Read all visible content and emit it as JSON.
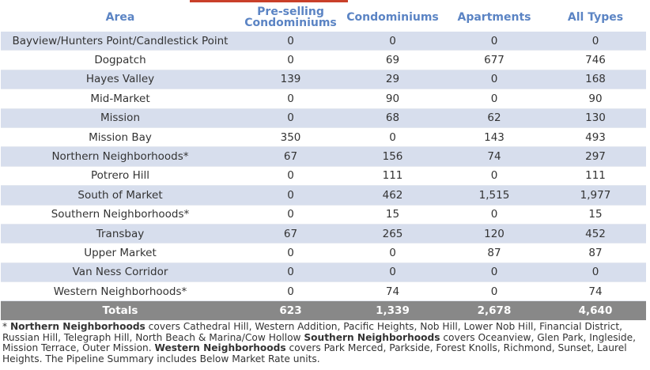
{
  "table": {
    "headers": {
      "area": "Area",
      "preselling": "Pre-selling Condominiums",
      "condominiums": "Condominiums",
      "apartments": "Apartments",
      "all_types": "All Types"
    },
    "rows": [
      {
        "area": "Bayview/Hunters Point/Candlestick Point",
        "preselling": "0",
        "condominiums": "0",
        "apartments": "0",
        "all_types": "0"
      },
      {
        "area": "Dogpatch",
        "preselling": "0",
        "condominiums": "69",
        "apartments": "677",
        "all_types": "746"
      },
      {
        "area": "Hayes Valley",
        "preselling": "139",
        "condominiums": "29",
        "apartments": "0",
        "all_types": "168"
      },
      {
        "area": "Mid-Market",
        "preselling": "0",
        "condominiums": "90",
        "apartments": "0",
        "all_types": "90"
      },
      {
        "area": "Mission",
        "preselling": "0",
        "condominiums": "68",
        "apartments": "62",
        "all_types": "130"
      },
      {
        "area": "Mission Bay",
        "preselling": "350",
        "condominiums": "0",
        "apartments": "143",
        "all_types": "493"
      },
      {
        "area": "Northern Neighborhoods*",
        "preselling": "67",
        "condominiums": "156",
        "apartments": "74",
        "all_types": "297"
      },
      {
        "area": "Potrero Hill",
        "preselling": "0",
        "condominiums": "111",
        "apartments": "0",
        "all_types": "111"
      },
      {
        "area": "South of Market",
        "preselling": "0",
        "condominiums": "462",
        "apartments": "1,515",
        "all_types": "1,977"
      },
      {
        "area": "Southern Neighborhoods*",
        "preselling": "0",
        "condominiums": "15",
        "apartments": "0",
        "all_types": "15"
      },
      {
        "area": "Transbay",
        "preselling": "67",
        "condominiums": "265",
        "apartments": "120",
        "all_types": "452"
      },
      {
        "area": "Upper Market",
        "preselling": "0",
        "condominiums": "0",
        "apartments": "87",
        "all_types": "87"
      },
      {
        "area": "Van Ness Corridor",
        "preselling": "0",
        "condominiums": "0",
        "apartments": "0",
        "all_types": "0"
      },
      {
        "area": "Western Neighborhoods*",
        "preselling": "0",
        "condominiums": "74",
        "apartments": "0",
        "all_types": "74"
      }
    ],
    "totals": {
      "label": "Totals",
      "preselling": "623",
      "condominiums": "1,339",
      "apartments": "2,678",
      "all_types": "4,640"
    }
  },
  "footnote": {
    "asterisk": "* ",
    "northern_label": "Northern Neighborhoods",
    "northern_text": " covers Cathedral Hill, Western Addition, Pacific Heights, Nob Hill, Lower Nob Hill, Financial District, Russian Hill, Telegraph Hill, North Beach & Marina/Cow Hollow ",
    "southern_label": "Southern Neighborhoods",
    "southern_text": " covers Oceanview, Glen Park, Ingleside, Mission Terrace, Outer Mission. ",
    "western_label": "Western Neighborhoods",
    "western_text": " covers Park Merced, Parkside, Forest Knolls, Richmond, Sunset, Laurel Heights. The Pipeline Summary includes Below Market Rate units."
  },
  "colors": {
    "header_text": "#5b84c4",
    "band": "#d7deed",
    "totals_bg": "#888888",
    "accent": "#c9402a"
  }
}
